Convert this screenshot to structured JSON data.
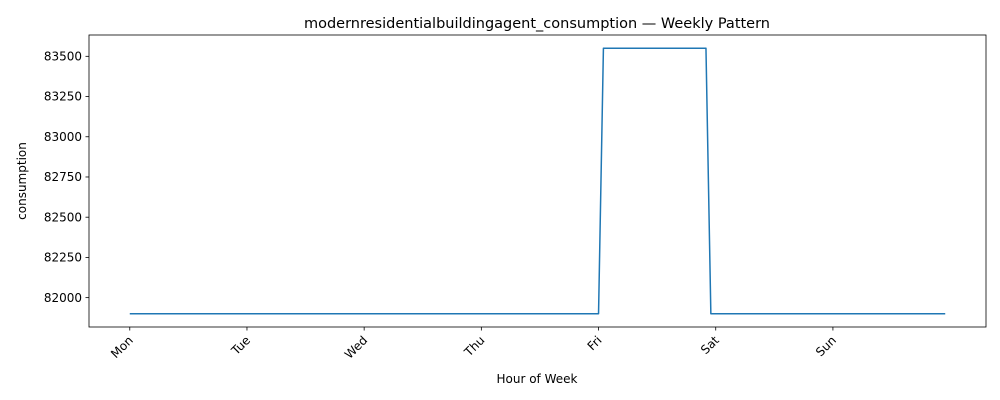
{
  "chart_data": {
    "type": "line",
    "title": "modernresidentialbuildingagent_consumption — Weekly Pattern",
    "xlabel": "Hour of Week",
    "ylabel": "consumption",
    "x_ticks": [
      {
        "value": 0,
        "label": "Mon"
      },
      {
        "value": 24,
        "label": "Tue"
      },
      {
        "value": 48,
        "label": "Wed"
      },
      {
        "value": 72,
        "label": "Thu"
      },
      {
        "value": 96,
        "label": "Fri"
      },
      {
        "value": 120,
        "label": "Sat"
      },
      {
        "value": 144,
        "label": "Sun"
      }
    ],
    "y_ticks": [
      82000,
      82250,
      82500,
      82750,
      83000,
      83250,
      83500
    ],
    "xlim": [
      -8.35,
      175.35
    ],
    "ylim": [
      81817.5,
      83632.5
    ],
    "grid": false,
    "line_color": "#1f77b4",
    "series": [
      {
        "x": [
          0,
          96,
          97,
          118,
          119,
          167
        ],
        "y": [
          81900,
          81900,
          83550,
          83550,
          81900,
          81900
        ]
      }
    ]
  }
}
